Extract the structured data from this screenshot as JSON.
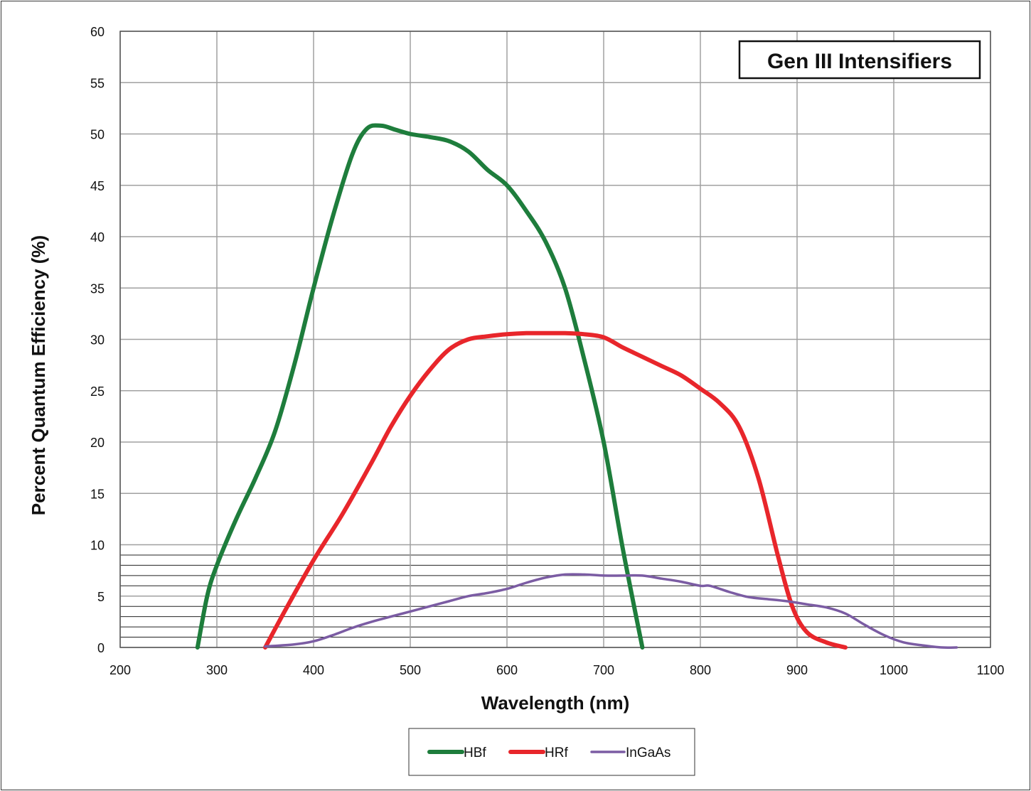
{
  "chart_data": {
    "type": "line",
    "title": "Gen III Intensifiers",
    "xlabel": "Wavelength (nm)",
    "ylabel": "Percent Quantum Efficiency (%)",
    "xlim": [
      200,
      1100
    ],
    "ylim": [
      0,
      60
    ],
    "x_ticks": [
      200,
      300,
      400,
      500,
      600,
      700,
      800,
      900,
      1000,
      1100
    ],
    "y_ticks": [
      0,
      5,
      10,
      15,
      20,
      25,
      30,
      35,
      40,
      45,
      50,
      55,
      60
    ],
    "x_tick_labels": [
      "200",
      "300",
      "400",
      "500",
      "600",
      "700",
      "800",
      "900",
      "1000",
      "1100"
    ],
    "y_tick_labels": [
      "0",
      "5",
      "10",
      "15",
      "20",
      "25",
      "30",
      "35",
      "40",
      "45",
      "50",
      "55",
      "60"
    ],
    "grid": true,
    "fine_grid_y": [
      1,
      2,
      3,
      4,
      6,
      7,
      8,
      9
    ],
    "legend_position": "bottom",
    "series": [
      {
        "name": "HBf",
        "color": "#1e7d3c",
        "line_weight": "thick",
        "points": [
          [
            280,
            0
          ],
          [
            290,
            5
          ],
          [
            300,
            8
          ],
          [
            320,
            12.5
          ],
          [
            340,
            16.5
          ],
          [
            360,
            21
          ],
          [
            380,
            27.5
          ],
          [
            400,
            35
          ],
          [
            420,
            42
          ],
          [
            440,
            48
          ],
          [
            455,
            50.5
          ],
          [
            470,
            50.8
          ],
          [
            485,
            50.4
          ],
          [
            500,
            50
          ],
          [
            520,
            49.7
          ],
          [
            540,
            49.3
          ],
          [
            560,
            48.3
          ],
          [
            580,
            46.5
          ],
          [
            600,
            45
          ],
          [
            620,
            42.5
          ],
          [
            640,
            39.5
          ],
          [
            660,
            35
          ],
          [
            680,
            28
          ],
          [
            700,
            20
          ],
          [
            720,
            9.5
          ],
          [
            740,
            0
          ]
        ]
      },
      {
        "name": "HRf",
        "color": "#e8262b",
        "line_weight": "thick",
        "points": [
          [
            350,
            0
          ],
          [
            370,
            3.5
          ],
          [
            400,
            8.5
          ],
          [
            430,
            13
          ],
          [
            460,
            18
          ],
          [
            480,
            21.5
          ],
          [
            500,
            24.5
          ],
          [
            520,
            27
          ],
          [
            540,
            29
          ],
          [
            560,
            30
          ],
          [
            580,
            30.3
          ],
          [
            600,
            30.5
          ],
          [
            620,
            30.6
          ],
          [
            640,
            30.6
          ],
          [
            660,
            30.6
          ],
          [
            680,
            30.5
          ],
          [
            700,
            30.2
          ],
          [
            720,
            29.2
          ],
          [
            740,
            28.3
          ],
          [
            760,
            27.4
          ],
          [
            780,
            26.5
          ],
          [
            800,
            25.2
          ],
          [
            820,
            23.8
          ],
          [
            840,
            21.5
          ],
          [
            860,
            16.5
          ],
          [
            880,
            9
          ],
          [
            895,
            4
          ],
          [
            910,
            1.5
          ],
          [
            930,
            0.5
          ],
          [
            950,
            0
          ]
        ]
      },
      {
        "name": "InGaAs",
        "color": "#7b5ca3",
        "line_weight": "thin",
        "points": [
          [
            350,
            0.1
          ],
          [
            380,
            0.3
          ],
          [
            400,
            0.6
          ],
          [
            420,
            1.2
          ],
          [
            440,
            1.9
          ],
          [
            460,
            2.5
          ],
          [
            480,
            3
          ],
          [
            500,
            3.5
          ],
          [
            520,
            4
          ],
          [
            540,
            4.5
          ],
          [
            560,
            5
          ],
          [
            580,
            5.3
          ],
          [
            600,
            5.7
          ],
          [
            620,
            6.3
          ],
          [
            640,
            6.8
          ],
          [
            660,
            7.1
          ],
          [
            680,
            7.1
          ],
          [
            700,
            7
          ],
          [
            720,
            7
          ],
          [
            740,
            7
          ],
          [
            760,
            6.7
          ],
          [
            780,
            6.4
          ],
          [
            800,
            6
          ],
          [
            810,
            6
          ],
          [
            830,
            5.4
          ],
          [
            850,
            4.9
          ],
          [
            870,
            4.7
          ],
          [
            890,
            4.5
          ],
          [
            910,
            4.2
          ],
          [
            930,
            3.9
          ],
          [
            950,
            3.3
          ],
          [
            970,
            2.2
          ],
          [
            990,
            1.2
          ],
          [
            1010,
            0.5
          ],
          [
            1030,
            0.2
          ],
          [
            1050,
            0
          ],
          [
            1065,
            0
          ]
        ]
      }
    ]
  }
}
